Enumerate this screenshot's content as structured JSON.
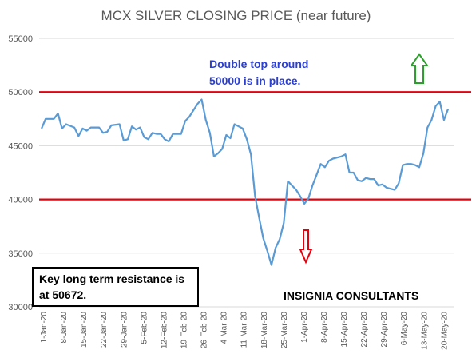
{
  "chart_data": {
    "type": "line",
    "title": "MCX SILVER CLOSING PRICE (near future)",
    "xlabel": "",
    "ylabel": "",
    "ylim": [
      30000,
      55000
    ],
    "yticks": [
      30000,
      35000,
      40000,
      45000,
      50000,
      55000
    ],
    "x_tick_labels": [
      "1-Jan-20",
      "8-Jan-20",
      "15-Jan-20",
      "22-Jan-20",
      "29-Jan-20",
      "5-Feb-20",
      "12-Feb-20",
      "19-Feb-20",
      "26-Feb-20",
      "4-Mar-20",
      "11-Mar-20",
      "18-Mar-20",
      "25-Mar-20",
      "1-Apr-20",
      "8-Apr-20",
      "15-Apr-20",
      "22-Apr-20",
      "29-Apr-20",
      "6-May-20",
      "13-May-20",
      "20-May-20"
    ],
    "grid": true,
    "series_color": "#5b9bd5",
    "series": [
      {
        "name": "",
        "values": [
          [
            0,
            46600
          ],
          [
            1,
            47500
          ],
          [
            3,
            47500
          ],
          [
            4,
            48000
          ],
          [
            5,
            46600
          ],
          [
            6,
            47000
          ],
          [
            8,
            46700
          ],
          [
            9,
            45900
          ],
          [
            10,
            46600
          ],
          [
            11,
            46400
          ],
          [
            12,
            46700
          ],
          [
            14,
            46700
          ],
          [
            15,
            46200
          ],
          [
            16,
            46300
          ],
          [
            17,
            46900
          ],
          [
            19,
            47000
          ],
          [
            20,
            45500
          ],
          [
            21,
            45600
          ],
          [
            22,
            46800
          ],
          [
            23,
            46500
          ],
          [
            24,
            46700
          ],
          [
            25,
            45800
          ],
          [
            26,
            45600
          ],
          [
            27,
            46200
          ],
          [
            28,
            46100
          ],
          [
            29,
            46100
          ],
          [
            30,
            45600
          ],
          [
            31,
            45400
          ],
          [
            32,
            46100
          ],
          [
            34,
            46100
          ],
          [
            35,
            47300
          ],
          [
            36,
            47700
          ],
          [
            37,
            48300
          ],
          [
            38,
            48900
          ],
          [
            39,
            49300
          ],
          [
            40,
            47400
          ],
          [
            41,
            46200
          ],
          [
            42,
            44000
          ],
          [
            43,
            44300
          ],
          [
            44,
            44700
          ],
          [
            45,
            46000
          ],
          [
            46,
            45700
          ],
          [
            47,
            47000
          ],
          [
            48,
            46800
          ],
          [
            49,
            46600
          ],
          [
            50,
            45600
          ],
          [
            51,
            44200
          ],
          [
            52,
            40300
          ],
          [
            53,
            38300
          ],
          [
            54,
            36400
          ],
          [
            55,
            35200
          ],
          [
            56,
            33900
          ],
          [
            57,
            35500
          ],
          [
            58,
            36300
          ],
          [
            59,
            37800
          ],
          [
            60,
            41700
          ],
          [
            61,
            41300
          ],
          [
            62,
            40900
          ],
          [
            63,
            40300
          ],
          [
            64,
            39600
          ],
          [
            65,
            40100
          ],
          [
            66,
            41300
          ],
          [
            67,
            42300
          ],
          [
            68,
            43300
          ],
          [
            69,
            43000
          ],
          [
            70,
            43600
          ],
          [
            71,
            43800
          ],
          [
            72,
            43900
          ],
          [
            73,
            44000
          ],
          [
            74,
            44200
          ],
          [
            75,
            42500
          ],
          [
            76,
            42500
          ],
          [
            77,
            41800
          ],
          [
            78,
            41700
          ],
          [
            79,
            42000
          ],
          [
            80,
            41900
          ],
          [
            81,
            41900
          ],
          [
            82,
            41300
          ],
          [
            83,
            41400
          ],
          [
            84,
            41100
          ],
          [
            85,
            41000
          ],
          [
            86,
            40900
          ],
          [
            87,
            41500
          ],
          [
            88,
            43200
          ],
          [
            89,
            43300
          ],
          [
            90,
            43300
          ],
          [
            91,
            43200
          ],
          [
            92,
            43000
          ],
          [
            93,
            44300
          ],
          [
            94,
            46700
          ],
          [
            95,
            47400
          ],
          [
            96,
            48700
          ],
          [
            97,
            49100
          ],
          [
            98,
            47400
          ],
          [
            99,
            48400
          ]
        ]
      }
    ],
    "reference_lines": [
      {
        "y": 50000,
        "color": "#e3000f"
      },
      {
        "y": 40000,
        "color": "#e3000f"
      }
    ],
    "annotations": {
      "double_top": [
        "Double top around",
        "50000 is in place."
      ],
      "key_resistance": [
        "Key long term resistance is",
        "at 50672."
      ],
      "brand": "INSIGNIA CONSULTANTS",
      "up_arrow_color": "#2ca02c",
      "down_arrow_color": "#e3000f"
    }
  }
}
